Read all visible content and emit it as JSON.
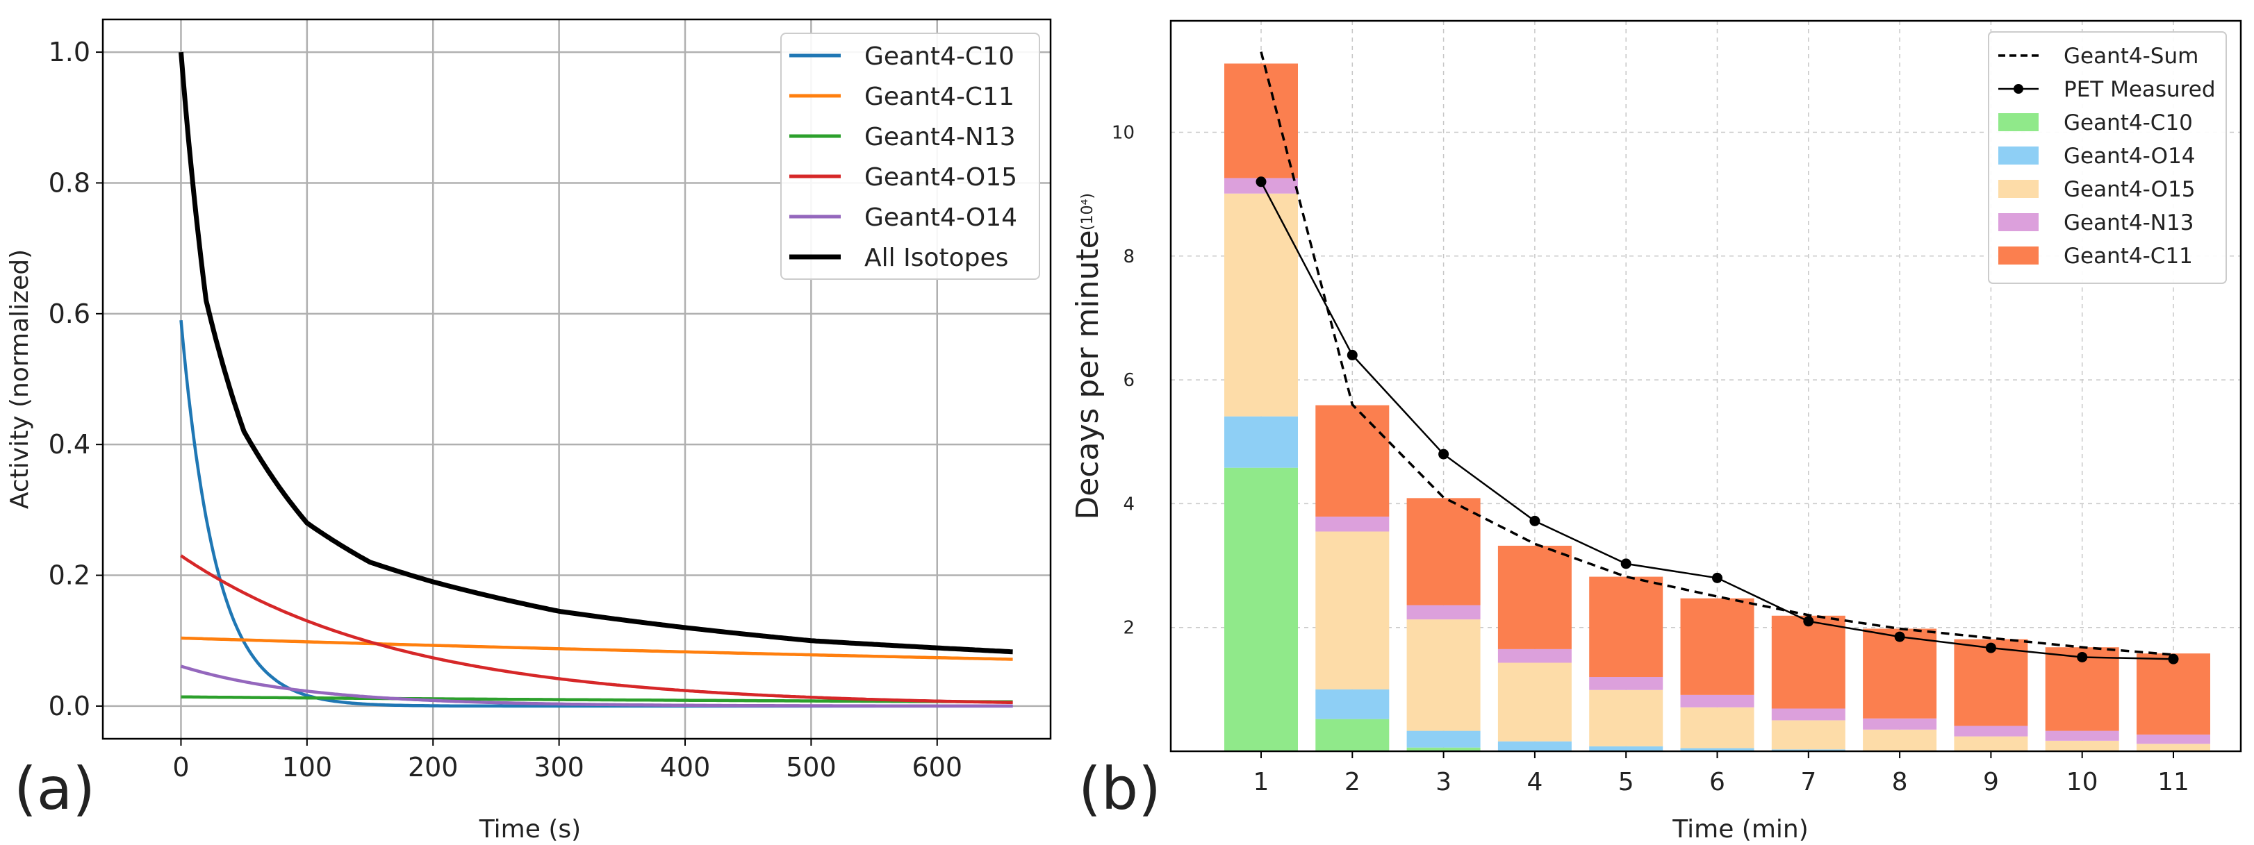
{
  "panel_labels": [
    "(a)",
    "(b)"
  ],
  "chart_data": [
    {
      "type": "line",
      "xlabel": "Time (s)",
      "ylabel": "Activity (normalized)",
      "xlim": [
        -62,
        690
      ],
      "ylim": [
        -0.05,
        1.05
      ],
      "xticks": [
        0,
        100,
        200,
        300,
        400,
        500,
        600
      ],
      "xtick_labels": [
        "0",
        "100",
        "200",
        "300",
        "400",
        "500",
        "600"
      ],
      "yticks": [
        0.0,
        0.2,
        0.4,
        0.6,
        0.8,
        1.0
      ],
      "ytick_labels": [
        "0.0",
        "0.2",
        "0.4",
        "0.6",
        "0.8",
        "1.0"
      ],
      "grid": true,
      "legend_position": "top-right",
      "series": [
        {
          "name": "Geant4-C10",
          "color": "#1f77b4",
          "model": {
            "a0": 0.59,
            "half_life_s": 19.3
          }
        },
        {
          "name": "Geant4-C11",
          "color": "#ff7f0e",
          "model": {
            "a0": 0.104,
            "half_life_s": 1223
          }
        },
        {
          "name": "Geant4-N13",
          "color": "#2ca02c",
          "model": {
            "a0": 0.014,
            "half_life_s": 598
          }
        },
        {
          "name": "Geant4-O15",
          "color": "#d62728",
          "model": {
            "a0": 0.23,
            "half_life_s": 122
          }
        },
        {
          "name": "Geant4-O14",
          "color": "#9467bd",
          "model": {
            "a0": 0.061,
            "half_life_s": 70.6
          }
        },
        {
          "name": "All Isotopes",
          "color": "#000000",
          "model": "normalized combined activity",
          "x": [
            0,
            20,
            50,
            100,
            150,
            200,
            300,
            400,
            500,
            660
          ],
          "y": [
            1.0,
            0.62,
            0.42,
            0.28,
            0.22,
            0.19,
            0.145,
            0.12,
            0.1,
            0.083
          ]
        }
      ]
    },
    {
      "type": "bar",
      "stacked": true,
      "xlabel": "Time (min)",
      "ylabel": "Decays per minute",
      "ylabel_unit": "(10⁴)",
      "categories": [
        "1",
        "2",
        "3",
        "4",
        "5",
        "6",
        "7",
        "8",
        "9",
        "10",
        "11"
      ],
      "ylim": [
        0,
        11.8
      ],
      "yticks": [
        2,
        4,
        6,
        8,
        10
      ],
      "ytick_labels": [
        "2",
        "4",
        "6",
        "8",
        "10"
      ],
      "grid": true,
      "legend_position": "top-right",
      "series": [
        {
          "name": "Geant4-C10",
          "color": "#90e98a",
          "values": [
            4.58,
            0.52,
            0.06,
            0.01,
            0.0,
            0.0,
            0.0,
            0.0,
            0.0,
            0.0,
            0.0
          ]
        },
        {
          "name": "Geant4-O14",
          "color": "#8ecff5",
          "values": [
            0.83,
            0.48,
            0.27,
            0.15,
            0.08,
            0.05,
            0.03,
            0.01,
            0.0,
            0.0,
            0.0
          ]
        },
        {
          "name": "Geant4-O15",
          "color": "#fddca8",
          "values": [
            3.6,
            2.55,
            1.8,
            1.27,
            0.91,
            0.66,
            0.47,
            0.34,
            0.24,
            0.17,
            0.12
          ]
        },
        {
          "name": "Geant4-N13",
          "color": "#dca0dc",
          "values": [
            0.25,
            0.24,
            0.23,
            0.22,
            0.21,
            0.2,
            0.19,
            0.18,
            0.17,
            0.16,
            0.15
          ]
        },
        {
          "name": "Geant4-C11",
          "color": "#fb7f4f",
          "values": [
            1.85,
            1.8,
            1.73,
            1.67,
            1.62,
            1.56,
            1.5,
            1.45,
            1.4,
            1.35,
            1.31
          ]
        }
      ],
      "lines": [
        {
          "name": "Geant4-Sum",
          "style": "dashed",
          "color": "#000000",
          "values": [
            11.3,
            5.6,
            4.1,
            3.35,
            2.82,
            2.5,
            2.2,
            1.98,
            1.83,
            1.68,
            1.56
          ]
        },
        {
          "name": "PET Measured",
          "style": "solid-marker",
          "color": "#000000",
          "values": [
            9.2,
            6.4,
            4.8,
            3.72,
            3.03,
            2.8,
            2.1,
            1.85,
            1.67,
            1.52,
            1.49
          ]
        }
      ],
      "legend_order": [
        "Geant4-Sum",
        "PET Measured",
        "Geant4-C10",
        "Geant4-O14",
        "Geant4-O15",
        "Geant4-N13",
        "Geant4-C11"
      ]
    }
  ]
}
